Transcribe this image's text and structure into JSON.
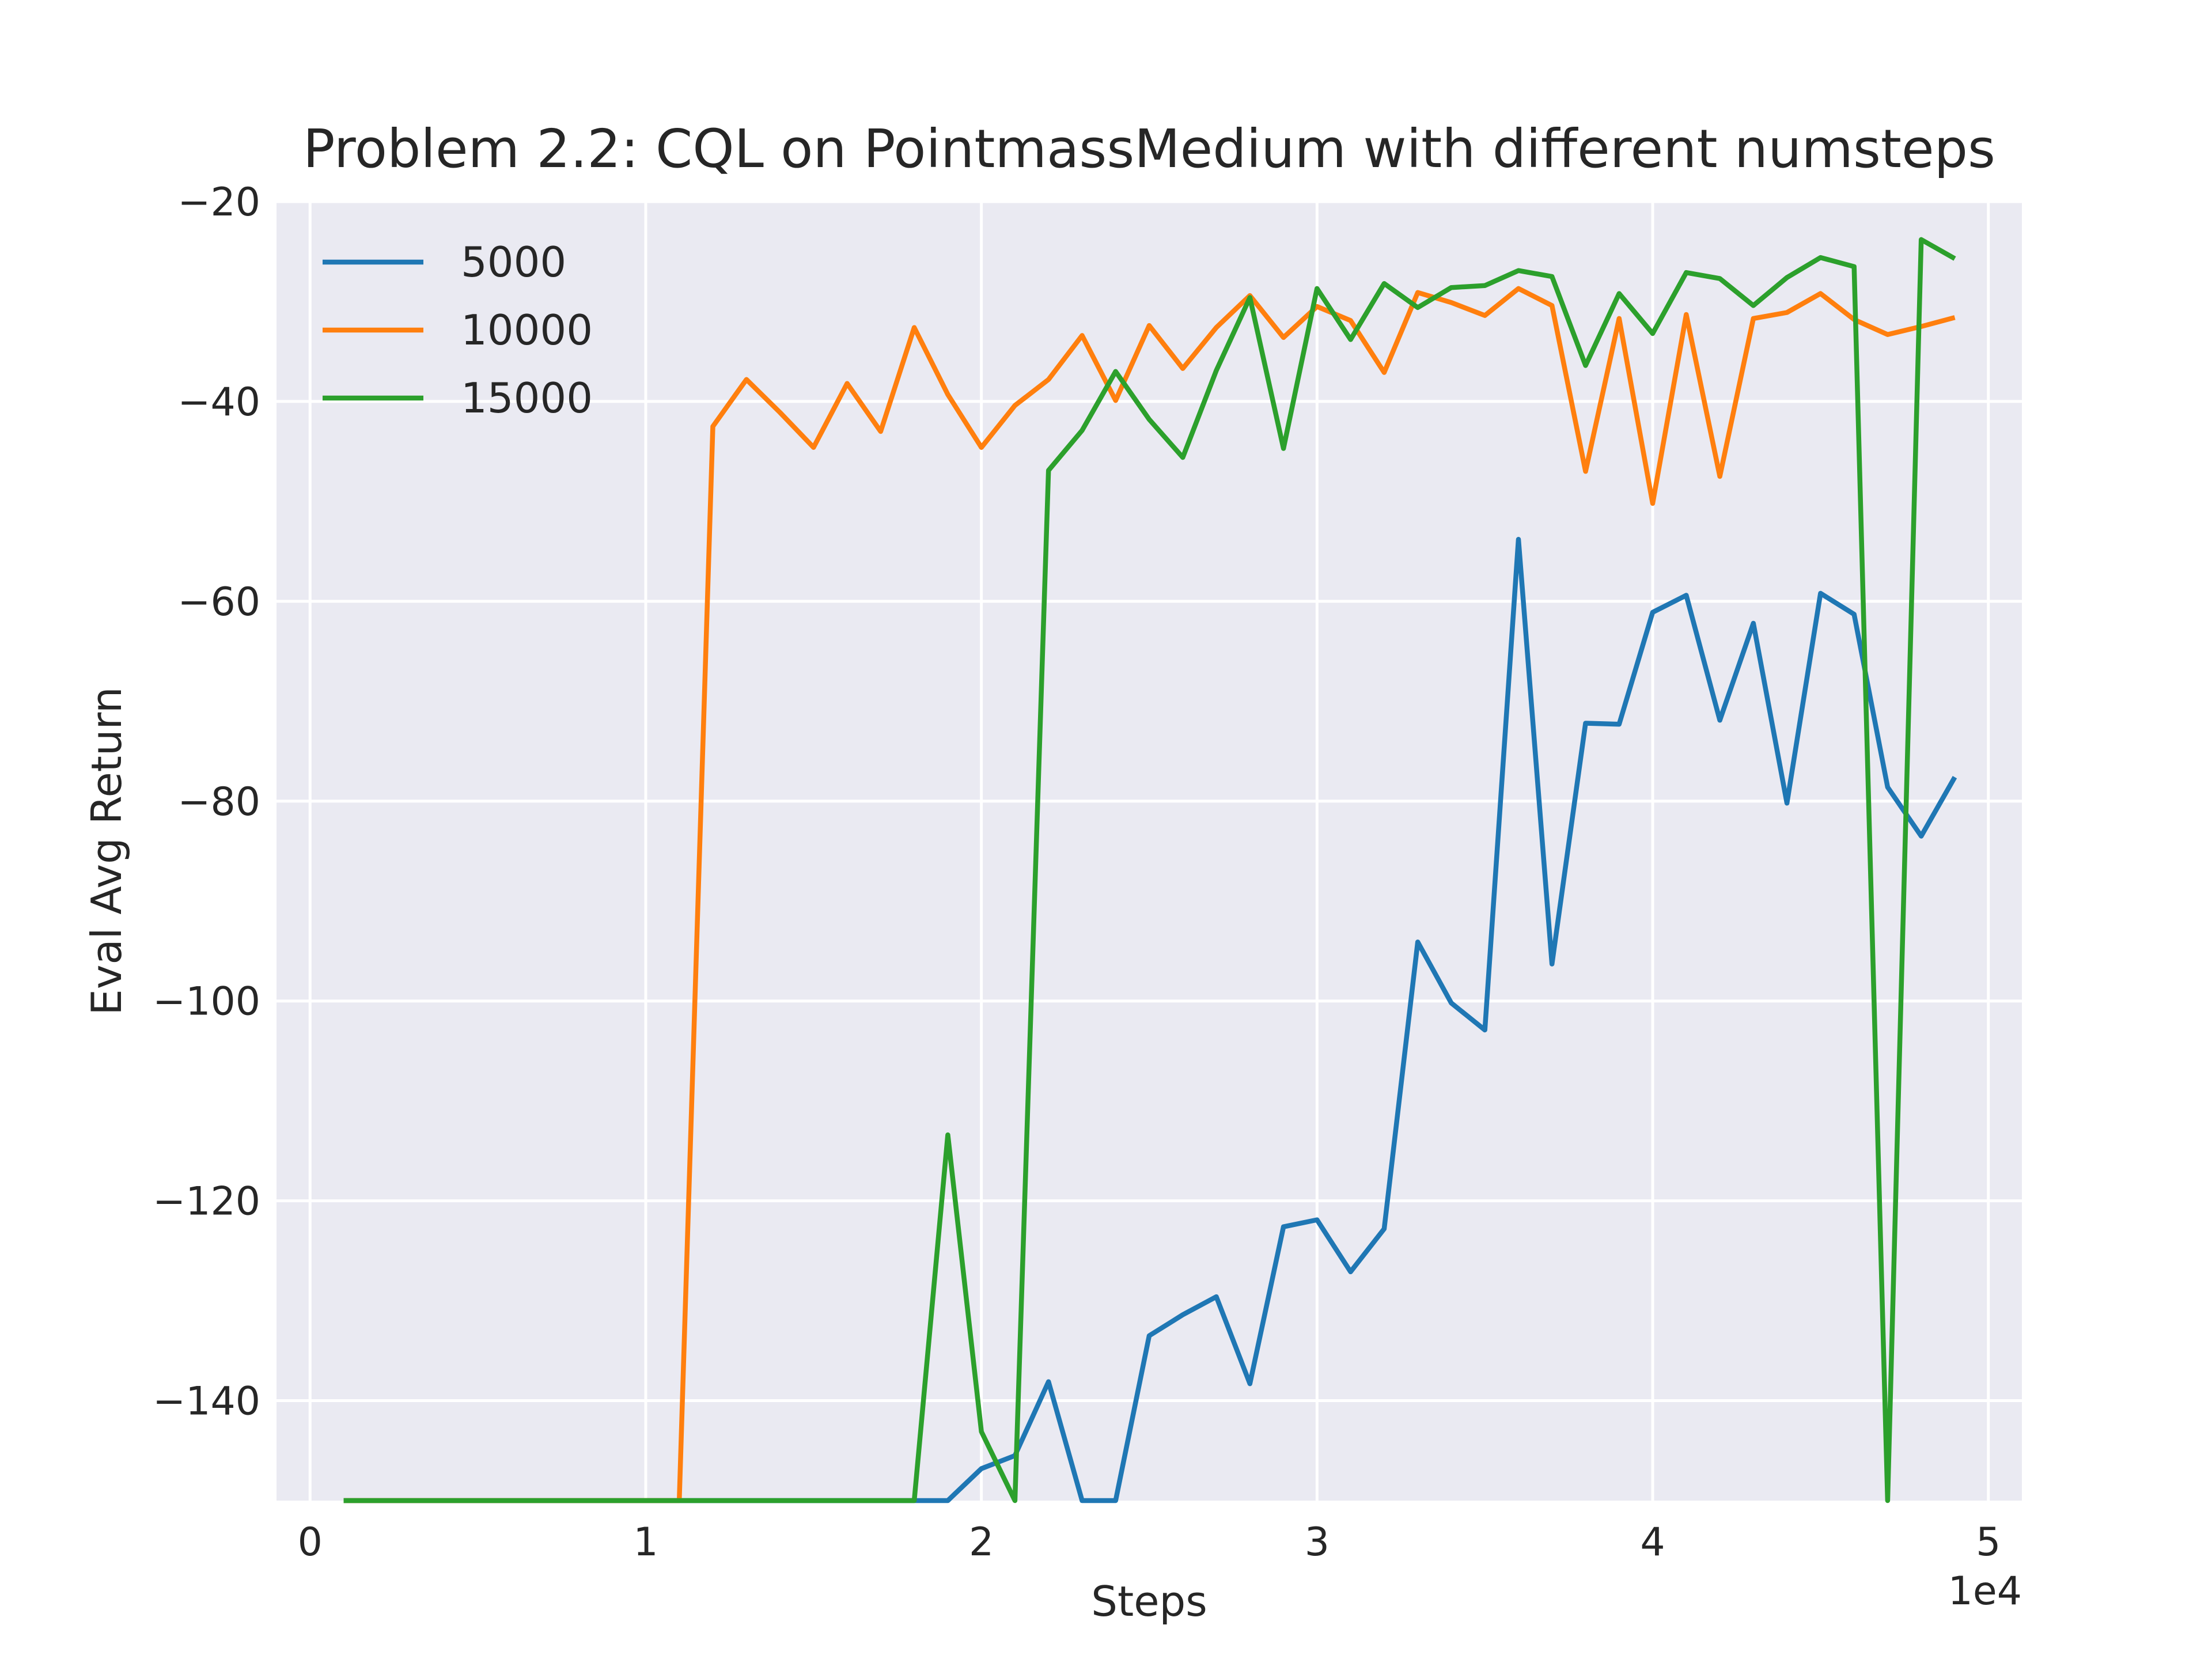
{
  "chart_data": {
    "type": "line",
    "title": "Problem 2.2: CQL on PointmassMedium with different numsteps",
    "xlabel": "Steps",
    "ylabel": "Eval Avg Return",
    "x_offset_label": "1e4",
    "xlim": [
      -1000,
      51000
    ],
    "ylim": [
      -150,
      -20
    ],
    "x_ticks": [
      0,
      10000,
      20000,
      30000,
      40000,
      50000
    ],
    "x_tick_labels": [
      "0",
      "1",
      "2",
      "3",
      "4",
      "5"
    ],
    "y_ticks": [
      -140,
      -120,
      -100,
      -80,
      -60,
      -40,
      -20
    ],
    "y_tick_labels": [
      "−140",
      "−120",
      "−100",
      "−80",
      "−60",
      "−40",
      "−20"
    ],
    "grid": true,
    "legend_position": "upper-left",
    "x": [
      1000,
      2000,
      3000,
      4000,
      5000,
      6000,
      7000,
      8000,
      9000,
      10000,
      11000,
      12000,
      13000,
      14000,
      15000,
      16000,
      17000,
      18000,
      19000,
      20000,
      21000,
      22000,
      23000,
      24000,
      25000,
      26000,
      27000,
      28000,
      29000,
      30000,
      31000,
      32000,
      33000,
      34000,
      35000,
      36000,
      37000,
      38000,
      39000,
      40000,
      41000,
      42000,
      43000,
      44000,
      45000,
      46000,
      47000,
      48000,
      49000
    ],
    "series": [
      {
        "name": "5000",
        "color": "#1f77b4",
        "values": [
          -150,
          -150,
          -150,
          -150,
          -150,
          -150,
          -150,
          -150,
          -150,
          -150,
          -150,
          -150,
          -150,
          -150,
          -150,
          -150,
          -150,
          -150,
          -150,
          -146.8,
          -145.5,
          -138.1,
          -150,
          -150,
          -133.5,
          -131.4,
          -129.6,
          -138.3,
          -122.6,
          -121.9,
          -127.1,
          -122.8,
          -94.1,
          -100.2,
          -102.9,
          -53.8,
          -96.3,
          -72.2,
          -72.3,
          -61.1,
          -59.4,
          -71.9,
          -62.2,
          -80.2,
          -59.2,
          -61.3,
          -78.6,
          -83.5,
          -77.6
        ]
      },
      {
        "name": "10000",
        "color": "#ff7f0e",
        "values": [
          -150,
          -150,
          -150,
          -150,
          -150,
          -150,
          -150,
          -150,
          -150,
          -150,
          -150,
          -42.5,
          -37.8,
          -41.1,
          -44.6,
          -38.2,
          -43.0,
          -32.6,
          -39.3,
          -44.6,
          -40.4,
          -37.8,
          -33.4,
          -39.9,
          -32.4,
          -36.7,
          -32.6,
          -29.4,
          -33.6,
          -30.5,
          -31.9,
          -37.1,
          -29.1,
          -30.1,
          -31.4,
          -28.7,
          -30.4,
          -47.0,
          -31.7,
          -50.2,
          -31.3,
          -47.5,
          -31.7,
          -31.1,
          -29.2,
          -31.8,
          -33.3,
          -32.5,
          -31.6
        ]
      },
      {
        "name": "15000",
        "color": "#2ca02c",
        "values": [
          -150,
          -150,
          -150,
          -150,
          -150,
          -150,
          -150,
          -150,
          -150,
          -150,
          -150,
          -150,
          -150,
          -150,
          -150,
          -150,
          -150,
          -150,
          -113.4,
          -143.1,
          -150,
          -46.9,
          -42.9,
          -37.0,
          -41.8,
          -45.6,
          -36.9,
          -29.6,
          -44.7,
          -28.7,
          -33.8,
          -28.2,
          -30.6,
          -28.6,
          -28.4,
          -26.9,
          -27.5,
          -36.4,
          -29.2,
          -33.2,
          -27.1,
          -27.7,
          -30.4,
          -27.6,
          -25.6,
          -26.5,
          -150,
          -23.8,
          -25.7
        ]
      }
    ]
  }
}
